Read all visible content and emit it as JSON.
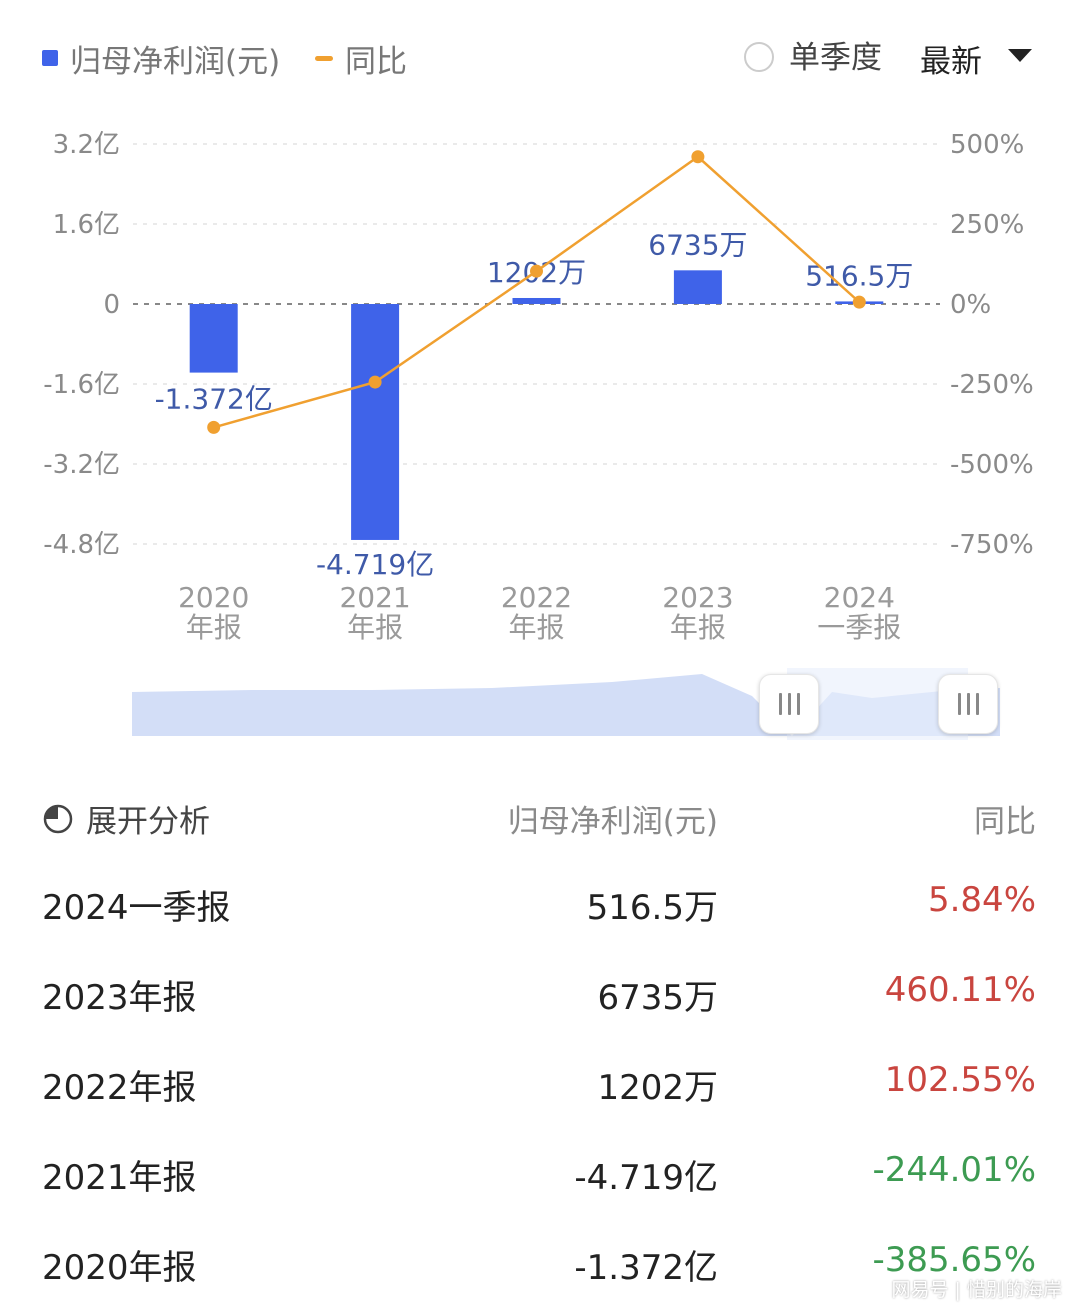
{
  "legend": {
    "bar_label": "归母净利润(元)",
    "line_label": "同比"
  },
  "controls": {
    "quarter_toggle_label": "单季度",
    "sort_label": "最新"
  },
  "chart_data": {
    "type": "bar",
    "categories": [
      [
        "2020",
        "年报"
      ],
      [
        "2021",
        "年报"
      ],
      [
        "2022",
        "年报"
      ],
      [
        "2023",
        "年报"
      ],
      [
        "2024",
        "一季报"
      ]
    ],
    "left_axis": {
      "ticks": [
        "3.2亿",
        "1.6亿",
        "0",
        "-1.6亿",
        "-3.2亿",
        "-4.8亿"
      ],
      "values": [
        3.2,
        1.6,
        0,
        -1.6,
        -3.2,
        -4.8
      ],
      "ylim": [
        -4.8,
        3.2
      ]
    },
    "right_axis": {
      "ticks": [
        "500%",
        "250%",
        "0%",
        "-250%",
        "-500%",
        "-750%"
      ],
      "values": [
        500,
        250,
        0,
        -250,
        -500,
        -750
      ],
      "ylim": [
        -750,
        500
      ]
    },
    "series": [
      {
        "name": "归母净利润(元)",
        "type": "bar",
        "axis": "left",
        "color": "#3f63e9",
        "values": [
          -1.372,
          -4.719,
          0.1202,
          0.6735,
          0.05165
        ],
        "labels": [
          "-1.372亿",
          "-4.719亿",
          "1202万",
          "6735万",
          "516.5万"
        ]
      },
      {
        "name": "同比",
        "type": "line",
        "axis": "right",
        "color": "#f0a030",
        "values": [
          -385.65,
          -244.01,
          102.55,
          460.11,
          5.84
        ]
      }
    ],
    "grid": true,
    "legend_position": "top-left"
  },
  "table": {
    "header": {
      "expand_label": "展开分析",
      "col_value": "归母净利润(元)",
      "col_yoy": "同比"
    },
    "rows": [
      {
        "period": "2024一季报",
        "value": "516.5万",
        "yoy": "5.84%"
      },
      {
        "period": "2023年报",
        "value": "6735万",
        "yoy": "460.11%"
      },
      {
        "period": "2022年报",
        "value": "1202万",
        "yoy": "102.55%"
      },
      {
        "period": "2021年报",
        "value": "-4.719亿",
        "yoy": "-244.01%"
      },
      {
        "period": "2020年报",
        "value": "-1.372亿",
        "yoy": "-385.65%"
      }
    ]
  },
  "watermark": "网易号 | 惜别的海岸"
}
